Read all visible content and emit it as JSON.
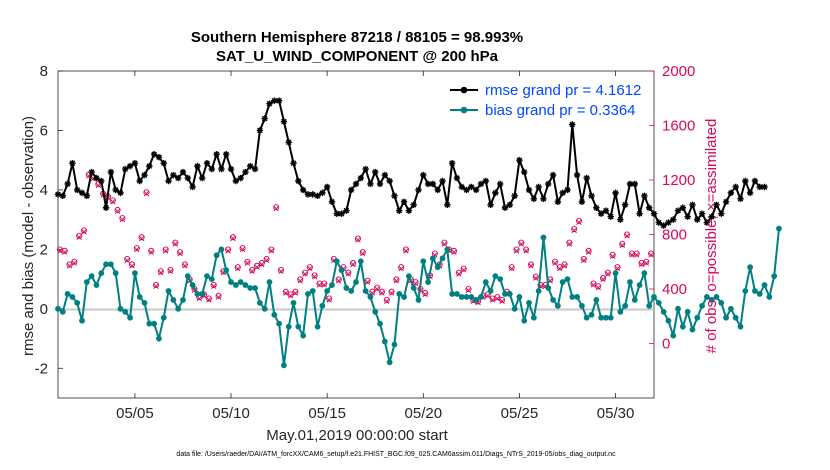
{
  "chart_data": {
    "type": "line",
    "title": "Southern Hemisphere 87218 / 88105 = 98.993%",
    "subtitle": "SAT_U_WIND_COMPONENT @ 200 hPa",
    "xlabel": "May.01,2019 00:00:00 start",
    "ylabel": "rmse and bias (model - observation)",
    "ylabel_right": "# of obs: o=possible; ×=assimilated",
    "xlim": [
      1,
      32
    ],
    "ylim": [
      -3,
      8
    ],
    "ylim_right": [
      -400,
      2000
    ],
    "x_tick_labels": [
      "05/05",
      "05/10",
      "05/15",
      "05/20",
      "05/25",
      "05/30"
    ],
    "x_tick_values": [
      5,
      10,
      15,
      20,
      25,
      30
    ],
    "y_ticks": [
      -2,
      0,
      2,
      4,
      6,
      8
    ],
    "y_ticks_right": [
      0,
      400,
      800,
      1200,
      1600,
      2000
    ],
    "legend": [
      "rmse grand pr = 4.1612",
      "bias grand pr = 0.3364"
    ],
    "legend_position": "top-right",
    "footer": "data file: /Users/raeder/DAI/ATM_forcXX/CAM6_setup/f.e21.FHIST_BGC.f09_025.CAM6assim.011/Diags_NTrS_2019-05/obs_diag_output.nc",
    "series": [
      {
        "name": "rmse",
        "color": "#000000",
        "marker": "asterisk",
        "x_start": 1,
        "x_step": 0.25,
        "values": [
          3.85,
          3.8,
          4.2,
          4.9,
          4.0,
          3.9,
          3.8,
          4.6,
          4.4,
          4.3,
          3.4,
          4.6,
          4.0,
          3.9,
          4.7,
          4.8,
          4.9,
          4.3,
          4.5,
          4.8,
          5.2,
          5.1,
          4.9,
          4.3,
          4.5,
          4.4,
          4.6,
          4.4,
          4.1,
          4.8,
          4.4,
          4.9,
          4.7,
          5.2,
          4.7,
          5.2,
          4.7,
          4.3,
          4.4,
          4.6,
          4.8,
          4.7,
          6.0,
          6.4,
          6.9,
          7.0,
          7.0,
          6.3,
          5.6,
          4.9,
          4.3,
          4.0,
          3.85,
          3.85,
          3.8,
          3.9,
          4.1,
          3.6,
          3.2,
          3.2,
          3.3,
          4.0,
          4.2,
          4.4,
          4.7,
          4.2,
          4.6,
          4.2,
          4.5,
          4.3,
          3.8,
          3.3,
          3.6,
          3.3,
          3.5,
          4.0,
          4.5,
          4.2,
          4.2,
          4.0,
          4.3,
          3.5,
          4.9,
          4.4,
          4.1,
          4.0,
          4.1,
          4.0,
          4.2,
          4.3,
          3.5,
          3.9,
          4.2,
          3.4,
          3.5,
          3.8,
          5.0,
          4.6,
          4.0,
          3.7,
          4.1,
          3.7,
          4.2,
          4.5,
          3.6,
          3.9,
          4.0,
          6.2,
          4.5,
          3.6,
          4.4,
          3.8,
          3.4,
          3.2,
          3.3,
          3.1,
          3.9,
          3.0,
          3.5,
          4.2,
          4.2,
          3.2,
          3.8,
          3.4,
          3.2,
          2.9,
          2.8,
          2.9,
          3.0,
          3.3,
          3.4,
          3.1,
          3.5,
          3.0,
          3.2,
          2.9,
          3.1,
          3.5,
          3.2,
          3.6,
          3.9,
          4.1,
          3.7,
          4.3,
          3.9,
          4.3,
          4.1,
          4.1
        ]
      },
      {
        "name": "bias",
        "color": "#008080",
        "marker": "circle",
        "x_start": 1,
        "x_step": 0.25,
        "values": [
          0.0,
          -0.1,
          0.5,
          0.4,
          0.2,
          -0.4,
          0.9,
          1.1,
          0.8,
          1.2,
          1.5,
          1.5,
          1.2,
          0.0,
          -0.1,
          -0.3,
          1.2,
          0.4,
          0.2,
          -0.5,
          -0.5,
          -1.0,
          -0.3,
          0.6,
          0.3,
          0.0,
          0.3,
          1.1,
          0.8,
          0.5,
          0.5,
          1.1,
          1.0,
          1.8,
          2.0,
          1.3,
          0.9,
          0.8,
          0.9,
          0.8,
          0.7,
          0.7,
          0.2,
          0.0,
          0.9,
          -0.2,
          -0.5,
          -1.9,
          -0.6,
          0.2,
          -0.6,
          -0.9,
          0.5,
          0.6,
          -0.6,
          0.1,
          0.6,
          0.8,
          1.6,
          1.3,
          0.7,
          0.6,
          0.9,
          1.6,
          0.6,
          0.4,
          -0.1,
          -0.5,
          -1.1,
          -1.8,
          -1.2,
          0.5,
          0.4,
          1.1,
          0.7,
          0.3,
          1.6,
          0.9,
          1.7,
          1.4,
          1.7,
          2.0,
          0.5,
          0.5,
          0.4,
          0.4,
          0.4,
          0.3,
          0.4,
          0.9,
          0.6,
          1.1,
          1.0,
          0.5,
          0.5,
          0.0,
          0.4,
          -0.4,
          0.2,
          -0.3,
          0.6,
          2.4,
          0.7,
          0.3,
          0.1,
          0.9,
          1.0,
          0.4,
          0.4,
          0.1,
          -0.3,
          -0.2,
          0.3,
          -0.3,
          -0.3,
          -0.3,
          1.2,
          -0.1,
          0.1,
          0.9,
          0.3,
          0.8,
          1.2,
          0.1,
          0.4,
          0.2,
          -0.1,
          -0.4,
          -0.9,
          0.0,
          -0.6,
          -0.1,
          -0.7,
          -0.3,
          0.1,
          0.4,
          0.3,
          0.4,
          0.2,
          -0.3,
          0.0,
          -0.3,
          -0.6,
          0.6,
          1.4,
          0.6,
          0.5,
          0.8,
          0.4,
          1.1,
          2.7
        ]
      },
      {
        "name": "obs possible",
        "color": "#d6075c",
        "marker": "o",
        "axis": "right",
        "x_start": 1.1,
        "x_step": 0.25,
        "values": [
          690,
          680,
          580,
          600,
          790,
          830,
          1240,
          1220,
          1170,
          1100,
          1080,
          1050,
          980,
          920,
          620,
          580,
          700,
          780,
          1110,
          680,
          430,
          530,
          690,
          540,
          740,
          670,
          580,
          470,
          400,
          340,
          360,
          330,
          430,
          350,
          530,
          690,
          780,
          560,
          700,
          600,
          540,
          570,
          590,
          620,
          690,
          1000,
          540,
          380,
          360,
          380,
          470,
          520,
          560,
          500,
          440,
          440,
          330,
          620,
          470,
          560,
          520,
          590,
          770,
          670,
          460,
          380,
          410,
          380,
          320,
          380,
          470,
          560,
          690,
          470,
          450,
          400,
          370,
          500,
          660,
          580,
          740,
          690,
          680,
          520,
          550,
          400,
          320,
          310,
          350,
          360,
          330,
          340,
          320,
          380,
          560,
          690,
          740,
          690,
          580,
          490,
          430,
          430,
          470,
          600,
          560,
          580,
          740,
          840,
          900,
          620,
          680,
          440,
          420,
          480,
          520,
          650,
          560,
          730,
          800,
          660,
          660,
          590,
          600,
          660,
          680,
          700,
          770,
          790,
          1350,
          1140,
          1050,
          1080,
          1300,
          1250,
          1200,
          1330,
          1230,
          1400,
          1100,
          1000,
          1450,
          1370,
          880,
          680,
          590,
          1100,
          1250
        ]
      },
      {
        "name": "obs assimilated",
        "color": "#d6075c",
        "marker": "x",
        "axis": "right",
        "x_start": 1.1,
        "x_step": 0.25,
        "values": [
          680,
          670,
          570,
          590,
          780,
          820,
          1230,
          1210,
          1160,
          1090,
          1070,
          1040,
          970,
          910,
          610,
          570,
          690,
          770,
          1100,
          670,
          420,
          520,
          680,
          530,
          730,
          660,
          570,
          460,
          390,
          330,
          350,
          320,
          420,
          340,
          520,
          680,
          770,
          550,
          690,
          590,
          530,
          560,
          580,
          610,
          680,
          990,
          530,
          370,
          350,
          370,
          460,
          510,
          550,
          490,
          430,
          430,
          320,
          610,
          460,
          550,
          510,
          580,
          760,
          660,
          450,
          370,
          400,
          370,
          310,
          370,
          460,
          550,
          680,
          460,
          440,
          390,
          360,
          490,
          650,
          570,
          730,
          680,
          670,
          510,
          540,
          390,
          310,
          300,
          340,
          350,
          320,
          330,
          310,
          370,
          550,
          680,
          730,
          680,
          570,
          480,
          420,
          420,
          460,
          590,
          550,
          570,
          730,
          830,
          890,
          610,
          670,
          430,
          410,
          470,
          510,
          640,
          550,
          720,
          790,
          650,
          650,
          580,
          590,
          650,
          670,
          690,
          760,
          780,
          1340,
          1130,
          1040,
          1070,
          1290,
          1240,
          1190,
          1320,
          1220,
          1390,
          1090,
          990,
          1440,
          1360,
          870,
          670,
          580,
          1090,
          1240
        ]
      }
    ]
  }
}
